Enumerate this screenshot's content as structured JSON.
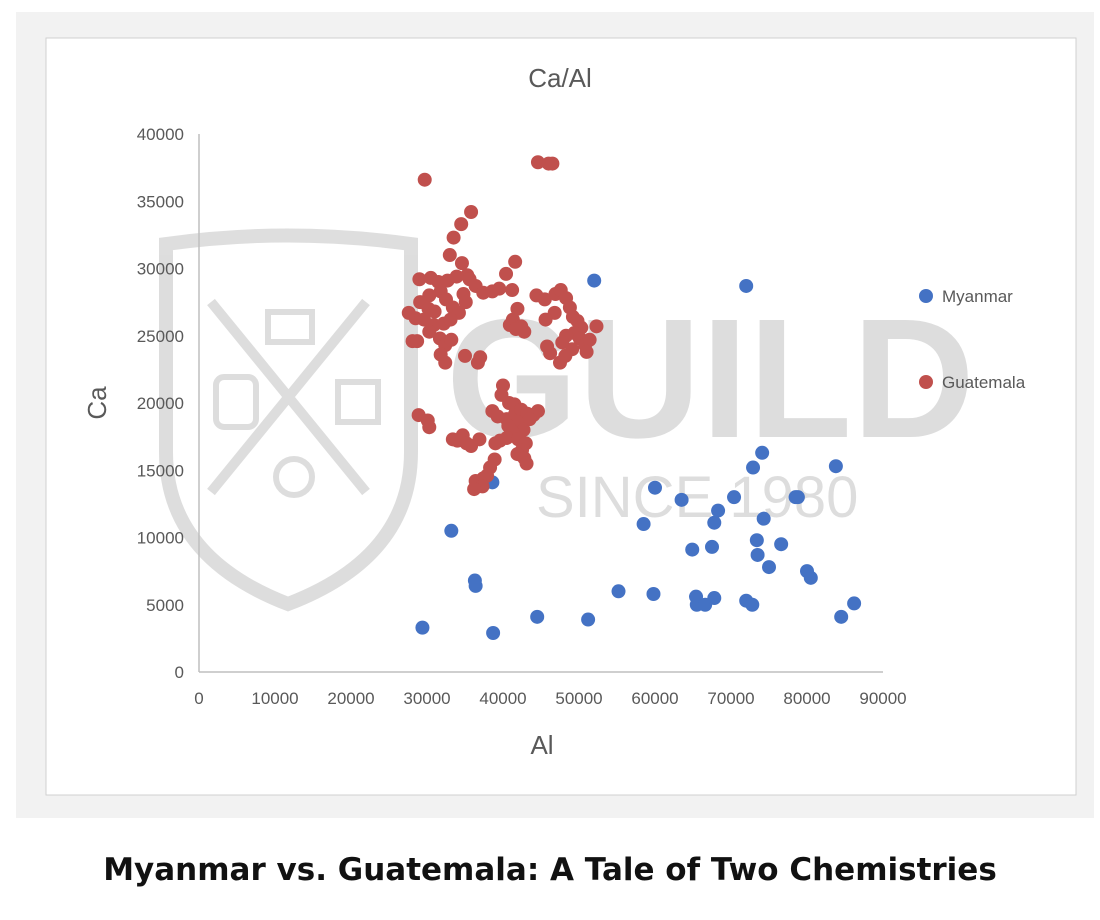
{
  "caption": "Myanmar vs. Guatemala: A Tale of Two Chemistries",
  "watermark": {
    "text": "GUILD",
    "subtext": "SINCE 1980"
  },
  "chart_data": {
    "type": "scatter",
    "title": "Ca/Al",
    "xlabel": "Al",
    "ylabel": "Ca",
    "xlim": [
      0,
      90000
    ],
    "ylim": [
      0,
      40000
    ],
    "xticks": [
      0,
      10000,
      20000,
      30000,
      40000,
      50000,
      60000,
      70000,
      80000,
      90000
    ],
    "yticks": [
      0,
      5000,
      10000,
      15000,
      20000,
      25000,
      30000,
      35000,
      40000
    ],
    "grid": false,
    "legend_position": "right",
    "series": [
      {
        "name": "Myanmar",
        "color": "#4472c4",
        "points": [
          [
            52000,
            29100
          ],
          [
            72000,
            28700
          ],
          [
            38600,
            14100
          ],
          [
            33200,
            10500
          ],
          [
            36300,
            6800
          ],
          [
            36400,
            6400
          ],
          [
            29400,
            3300
          ],
          [
            38700,
            2900
          ],
          [
            44500,
            4100
          ],
          [
            51200,
            3900
          ],
          [
            55200,
            6000
          ],
          [
            59800,
            5800
          ],
          [
            58500,
            11000
          ],
          [
            60000,
            13700
          ],
          [
            63500,
            12800
          ],
          [
            64900,
            9100
          ],
          [
            65400,
            5600
          ],
          [
            65500,
            5000
          ],
          [
            66600,
            5000
          ],
          [
            67500,
            9300
          ],
          [
            67800,
            11100
          ],
          [
            68300,
            12000
          ],
          [
            67800,
            5500
          ],
          [
            70400,
            13000
          ],
          [
            72000,
            5300
          ],
          [
            72800,
            5000
          ],
          [
            72900,
            15200
          ],
          [
            73400,
            9800
          ],
          [
            73500,
            8700
          ],
          [
            74100,
            16300
          ],
          [
            74300,
            11400
          ],
          [
            75000,
            7800
          ],
          [
            76600,
            9500
          ],
          [
            78500,
            13000
          ],
          [
            78800,
            13000
          ],
          [
            80000,
            7500
          ],
          [
            80500,
            7000
          ],
          [
            83800,
            15300
          ],
          [
            84500,
            4100
          ],
          [
            86200,
            5100
          ]
        ]
      },
      {
        "name": "Guatemala",
        "color": "#c0504d",
        "points": [
          [
            44600,
            37900
          ],
          [
            46000,
            37800
          ],
          [
            46500,
            37800
          ],
          [
            29700,
            36600
          ],
          [
            35800,
            34200
          ],
          [
            34500,
            33300
          ],
          [
            33500,
            32300
          ],
          [
            33000,
            31000
          ],
          [
            41600,
            30500
          ],
          [
            34600,
            30400
          ],
          [
            35300,
            29500
          ],
          [
            29000,
            29200
          ],
          [
            30500,
            29300
          ],
          [
            31500,
            29000
          ],
          [
            32700,
            29100
          ],
          [
            33900,
            29400
          ],
          [
            35600,
            29200
          ],
          [
            36400,
            28700
          ],
          [
            40400,
            29600
          ],
          [
            41200,
            28400
          ],
          [
            37400,
            28200
          ],
          [
            38600,
            28300
          ],
          [
            39500,
            28500
          ],
          [
            30300,
            28000
          ],
          [
            31800,
            28300
          ],
          [
            32500,
            27700
          ],
          [
            34800,
            28100
          ],
          [
            35100,
            27500
          ],
          [
            29100,
            27500
          ],
          [
            30200,
            27000
          ],
          [
            31000,
            26800
          ],
          [
            33400,
            27100
          ],
          [
            34200,
            26700
          ],
          [
            28500,
            26300
          ],
          [
            27600,
            26700
          ],
          [
            29600,
            26200
          ],
          [
            30900,
            25800
          ],
          [
            32200,
            25900
          ],
          [
            33100,
            26200
          ],
          [
            41900,
            27000
          ],
          [
            41300,
            26200
          ],
          [
            40900,
            25800
          ],
          [
            42400,
            25700
          ],
          [
            42800,
            25300
          ],
          [
            41700,
            25500
          ],
          [
            44400,
            28000
          ],
          [
            45500,
            27700
          ],
          [
            46900,
            28100
          ],
          [
            47600,
            28400
          ],
          [
            48300,
            27800
          ],
          [
            48800,
            27100
          ],
          [
            46800,
            26700
          ],
          [
            45600,
            26200
          ],
          [
            49200,
            26400
          ],
          [
            49800,
            26100
          ],
          [
            50300,
            25600
          ],
          [
            49400,
            25200
          ],
          [
            48300,
            25000
          ],
          [
            47800,
            24500
          ],
          [
            50100,
            24800
          ],
          [
            50800,
            24300
          ],
          [
            51400,
            24700
          ],
          [
            52300,
            25700
          ],
          [
            49100,
            24000
          ],
          [
            48200,
            23500
          ],
          [
            47500,
            23000
          ],
          [
            46200,
            23700
          ],
          [
            45800,
            24200
          ],
          [
            51000,
            23800
          ],
          [
            30300,
            25300
          ],
          [
            31700,
            24800
          ],
          [
            32400,
            24300
          ],
          [
            33200,
            24700
          ],
          [
            28100,
            24600
          ],
          [
            28700,
            24600
          ],
          [
            31800,
            23600
          ],
          [
            32400,
            23000
          ],
          [
            35000,
            23500
          ],
          [
            37000,
            23400
          ],
          [
            36700,
            23000
          ],
          [
            40000,
            21300
          ],
          [
            39800,
            20600
          ],
          [
            40800,
            20000
          ],
          [
            41500,
            19900
          ],
          [
            38600,
            19400
          ],
          [
            39300,
            19000
          ],
          [
            40500,
            18800
          ],
          [
            41600,
            19200
          ],
          [
            42400,
            19500
          ],
          [
            43200,
            19200
          ],
          [
            44600,
            19400
          ],
          [
            44000,
            19100
          ],
          [
            43500,
            18800
          ],
          [
            41900,
            18600
          ],
          [
            40700,
            18300
          ],
          [
            42700,
            18000
          ],
          [
            41300,
            17800
          ],
          [
            39600,
            17200
          ],
          [
            39000,
            17000
          ],
          [
            40500,
            17400
          ],
          [
            42000,
            17300
          ],
          [
            43000,
            17000
          ],
          [
            42500,
            16500
          ],
          [
            41900,
            16200
          ],
          [
            42800,
            15900
          ],
          [
            43100,
            15500
          ],
          [
            38900,
            15800
          ],
          [
            38300,
            15200
          ],
          [
            37900,
            14600
          ],
          [
            37400,
            14400
          ],
          [
            37000,
            14100
          ],
          [
            36400,
            14200
          ],
          [
            37300,
            13800
          ],
          [
            36200,
            13600
          ],
          [
            28900,
            19100
          ],
          [
            30100,
            18700
          ],
          [
            30300,
            18200
          ],
          [
            33400,
            17300
          ],
          [
            34000,
            17200
          ],
          [
            34700,
            17600
          ],
          [
            35200,
            17000
          ],
          [
            35800,
            16800
          ],
          [
            36900,
            17300
          ]
        ]
      }
    ]
  }
}
